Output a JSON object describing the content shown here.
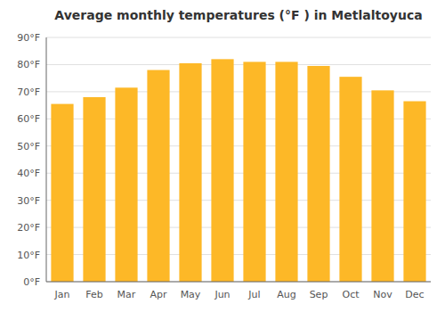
{
  "chart_data": {
    "type": "bar",
    "title": "Average monthly temperatures (°F ) in Metlaltoyuca",
    "categories": [
      "Jan",
      "Feb",
      "Mar",
      "Apr",
      "May",
      "Jun",
      "Jul",
      "Aug",
      "Sep",
      "Oct",
      "Nov",
      "Dec"
    ],
    "values": [
      65.5,
      68.0,
      71.5,
      78.0,
      80.5,
      82.0,
      81.0,
      81.0,
      79.5,
      75.5,
      70.5,
      66.5
    ],
    "color": "#FDB827",
    "ylim": [
      0,
      90
    ],
    "yticks": [
      {
        "value": 0,
        "label": "0°F"
      },
      {
        "value": 10,
        "label": "10°F"
      },
      {
        "value": 20,
        "label": "20°F"
      },
      {
        "value": 30,
        "label": "30°F"
      },
      {
        "value": 40,
        "label": "40°F"
      },
      {
        "value": 50,
        "label": "50°F"
      },
      {
        "value": 60,
        "label": "60°F"
      },
      {
        "value": 70,
        "label": "70°F"
      },
      {
        "value": 80,
        "label": "80°F"
      },
      {
        "value": 90,
        "label": "90°F"
      }
    ],
    "grid": true
  }
}
